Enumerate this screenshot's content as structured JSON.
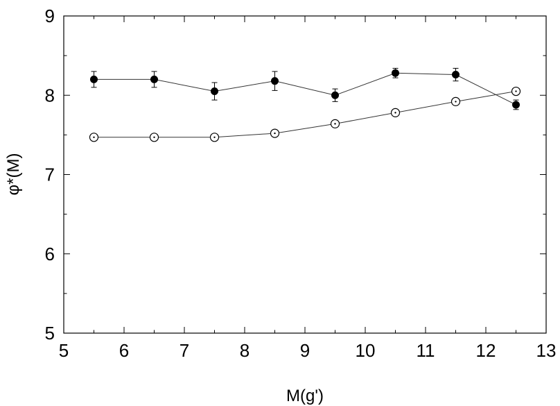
{
  "chart_data": {
    "type": "scatter",
    "xlabel": "M(g')",
    "ylabel": "φ*(M)",
    "xlim": [
      5,
      13
    ],
    "ylim": [
      5,
      9
    ],
    "xticks": [
      5,
      6,
      7,
      8,
      9,
      10,
      11,
      12,
      13
    ],
    "yticks": [
      5,
      6,
      7,
      8,
      9
    ],
    "grid": false,
    "series": [
      {
        "marker": "filled-circle",
        "error_bars": true,
        "x": [
          5.5,
          6.5,
          7.5,
          8.5,
          9.5,
          10.5,
          11.5,
          12.5
        ],
        "y": [
          8.2,
          8.2,
          8.05,
          8.18,
          8.0,
          8.28,
          8.26,
          7.88
        ],
        "yerr": [
          0.1,
          0.1,
          0.11,
          0.12,
          0.08,
          0.06,
          0.08,
          0.06
        ]
      },
      {
        "marker": "open-circle",
        "error_bars": false,
        "x": [
          5.5,
          6.5,
          7.5,
          8.5,
          9.5,
          10.5,
          11.5,
          12.5
        ],
        "y": [
          7.47,
          7.47,
          7.47,
          7.52,
          7.64,
          7.78,
          7.92,
          8.05
        ]
      }
    ]
  }
}
